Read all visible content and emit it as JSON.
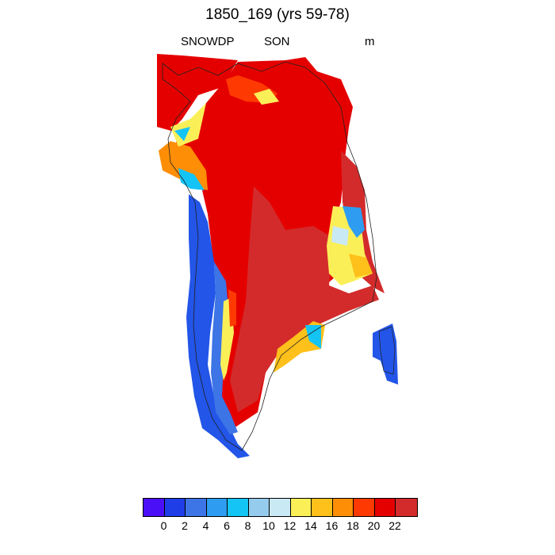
{
  "title": "1850_169 (yrs 59-78)",
  "left_label": "SNOWDP",
  "center_label": "SON",
  "right_label": "m",
  "colorbar": {
    "colors": [
      "#4b0ff7",
      "#1f3ee8",
      "#3d74e6",
      "#2e9cf0",
      "#14c4f5",
      "#95ccee",
      "#c9e9f5",
      "#fbef58",
      "#fec01a",
      "#fd8e06",
      "#fe3a02",
      "#e50000",
      "#d32b2b"
    ],
    "tick_labels": [
      "0",
      "2",
      "4",
      "6",
      "8",
      "10",
      "12",
      "14",
      "16",
      "18",
      "20",
      "22"
    ]
  },
  "chart_data": {
    "type": "map",
    "variable": "SNOWDP",
    "season": "SON",
    "units": "m",
    "levels": [
      0,
      2,
      4,
      6,
      8,
      10,
      12,
      14,
      16,
      18,
      20,
      22
    ],
    "region_values": {
      "interior_south": 22,
      "interior_north": 20,
      "west_coast": 4,
      "east_coast_fringe": 12,
      "northwest_fringe": 20,
      "east_island": 2
    }
  }
}
